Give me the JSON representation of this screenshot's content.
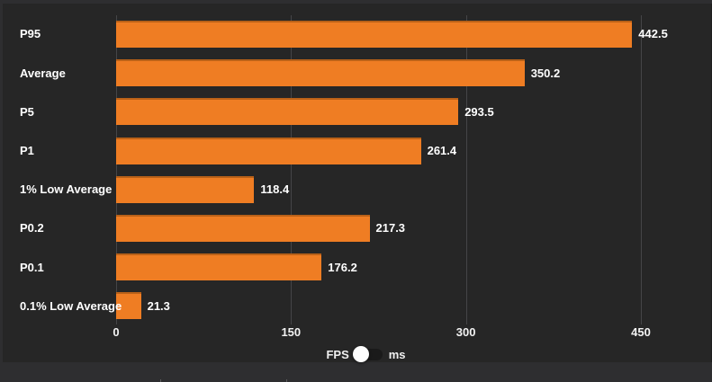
{
  "chart_data": {
    "type": "bar",
    "orientation": "horizontal",
    "title": "",
    "xlabel": "",
    "ylabel": "",
    "categories": [
      "P95",
      "Average",
      "P5",
      "P1",
      "1% Low Average",
      "P0.2",
      "P0.1",
      "0.1% Low Average"
    ],
    "values": [
      442.5,
      350.2,
      293.5,
      261.4,
      118.4,
      217.3,
      176.2,
      21.3
    ],
    "value_labels": [
      "442.5",
      "350.2",
      "293.5",
      "261.4",
      "118.4",
      "217.3",
      "176.2",
      "21.3"
    ],
    "xticks": [
      0,
      150,
      300,
      450
    ],
    "xlim": [
      0,
      511
    ],
    "grid": true,
    "legend_position": "none",
    "bar_color": "#ef7d23",
    "unit": "FPS"
  },
  "unit_toggle": {
    "left_label": "FPS",
    "right_label": "ms",
    "selected": "FPS"
  },
  "colors": {
    "outer_bg": "#2e2e30",
    "panel_bg": "#262626",
    "bar": "#ef7d23",
    "gridline": "#454547",
    "text": "#f2f2f2",
    "toggle_track": "#1a1a1a",
    "toggle_knob": "#ffffff"
  }
}
